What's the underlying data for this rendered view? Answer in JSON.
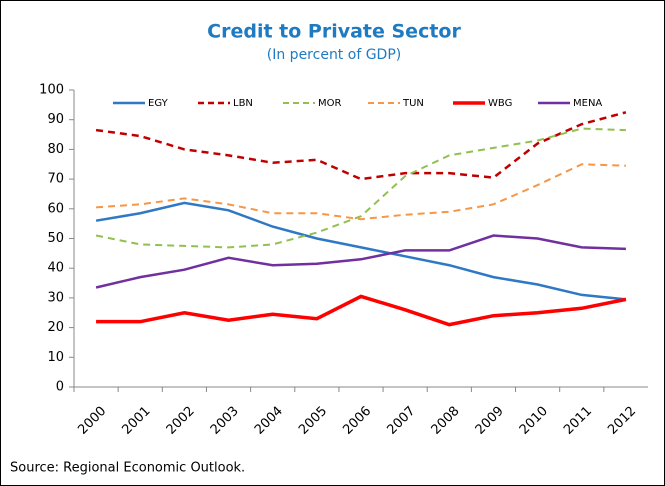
{
  "chart_data": {
    "type": "line",
    "title": "Credit to Private Sector",
    "subtitle": "(In percent of GDP)",
    "source": "Source: Regional Economic Outlook.",
    "categories": [
      "2000",
      "2001",
      "2002",
      "2003",
      "2004",
      "2005",
      "2006",
      "2007",
      "2008",
      "2009",
      "2010",
      "2011",
      "2012"
    ],
    "ylim": [
      0,
      100
    ],
    "yticks": [
      0,
      10,
      20,
      30,
      40,
      50,
      60,
      70,
      80,
      90,
      100
    ],
    "grid": false,
    "series": [
      {
        "name": "EGY",
        "color": "#2e78c4",
        "dashed": false,
        "line_width": 2.5,
        "values": [
          56,
          58.5,
          62,
          59.5,
          54,
          50,
          47,
          44,
          41,
          37,
          34.5,
          31,
          29.5
        ]
      },
      {
        "name": "LBN",
        "color": "#c00000",
        "dashed": true,
        "line_width": 2.5,
        "values": [
          86.5,
          84.5,
          80,
          78,
          75.5,
          76.5,
          70,
          72,
          72,
          70.5,
          82,
          88.5,
          92.5
        ]
      },
      {
        "name": "MOR",
        "color": "#92c050",
        "dashed": true,
        "line_width": 2,
        "values": [
          51,
          48,
          47.5,
          47,
          48,
          52,
          57.5,
          71,
          78,
          80.5,
          83,
          87,
          86.5
        ]
      },
      {
        "name": "TUN",
        "color": "#f79646",
        "dashed": true,
        "line_width": 2,
        "values": [
          60.5,
          61.5,
          63.5,
          61.5,
          58.5,
          58.5,
          56.5,
          58,
          59,
          61.5,
          68,
          75,
          74.5
        ]
      },
      {
        "name": "WBG",
        "color": "#ff0000",
        "dashed": false,
        "line_width": 3.5,
        "values": [
          22,
          22,
          25,
          22.5,
          24.5,
          23,
          30.5,
          26,
          21,
          24,
          25,
          26.5,
          29.5
        ]
      },
      {
        "name": "MENA",
        "color": "#7030a0",
        "dashed": false,
        "line_width": 2.5,
        "values": [
          33.5,
          37,
          39.5,
          43.5,
          41,
          41.5,
          43,
          46,
          46,
          51,
          50,
          47,
          46.5
        ]
      }
    ]
  }
}
